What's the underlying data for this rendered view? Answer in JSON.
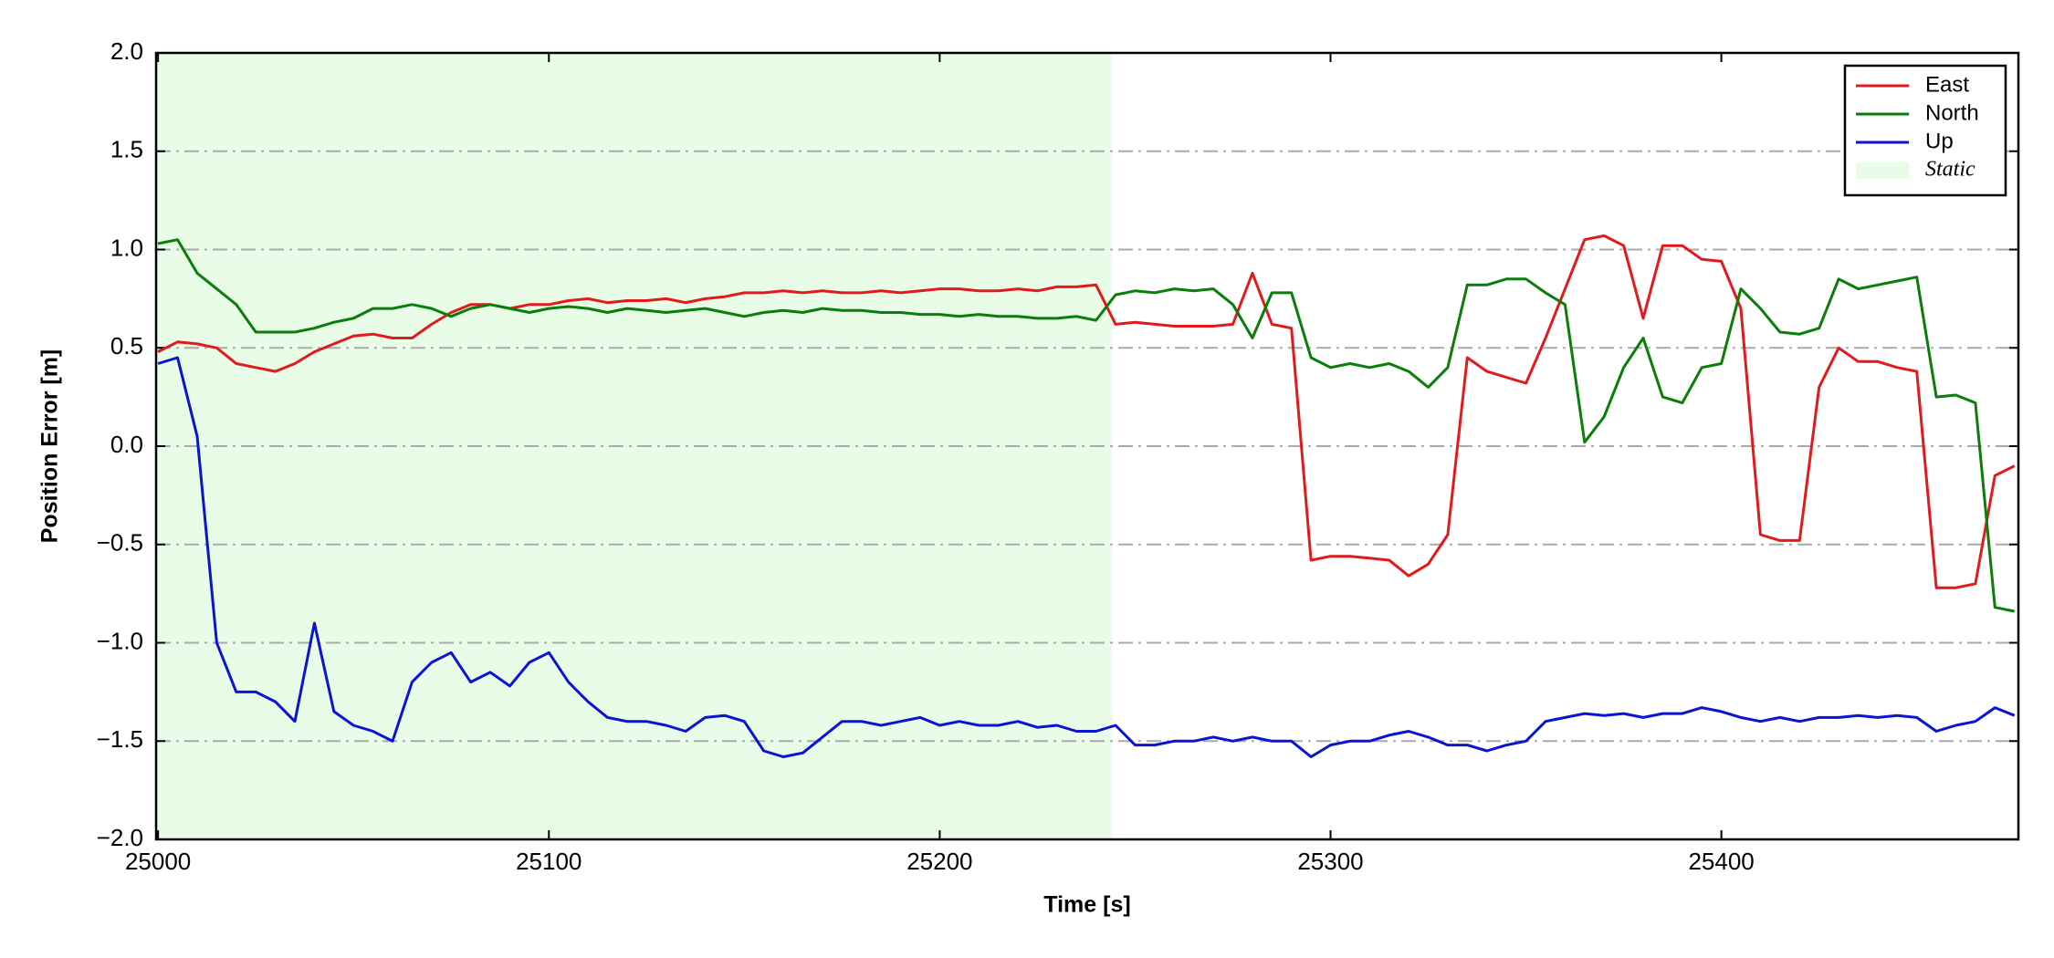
{
  "chart_data": {
    "type": "line",
    "xlabel": "Time [s]",
    "ylabel": "Position Error [m]",
    "xlim": [
      24999.5,
      25476
    ],
    "ylim": [
      -2,
      2
    ],
    "xticks": [
      25000,
      25100,
      25200,
      25300,
      25400
    ],
    "yticks": [
      {
        "value": -2,
        "label": "−2.0"
      },
      {
        "value": -1.5,
        "label": "−1.5"
      },
      {
        "value": -1,
        "label": "−1.0"
      },
      {
        "value": -0.5,
        "label": "−0.5"
      },
      {
        "value": 0,
        "label": "0.0"
      },
      {
        "value": 0.5,
        "label": "0.5"
      },
      {
        "value": 1,
        "label": "1.0"
      },
      {
        "value": 1.5,
        "label": "1.5"
      },
      {
        "value": 2,
        "label": "2.0"
      }
    ],
    "grid": true,
    "legend": "upper right",
    "shaded_region": {
      "name": "Static",
      "color": "#e8fce8",
      "xlim": [
        24999.5,
        25244
      ]
    },
    "x": [
      25000,
      25005,
      25010,
      25015,
      25020,
      25025,
      25030,
      25035,
      25040,
      25045,
      25050,
      25055,
      25060,
      25065,
      25070,
      25075,
      25080,
      25085,
      25090,
      25095,
      25100,
      25105,
      25110,
      25115,
      25120,
      25125,
      25130,
      25135,
      25140,
      25145,
      25150,
      25155,
      25160,
      25165,
      25170,
      25175,
      25180,
      25185,
      25190,
      25195,
      25200,
      25205,
      25210,
      25215,
      25220,
      25225,
      25230,
      25235,
      25240,
      25245,
      25250,
      25255,
      25260,
      25265,
      25270,
      25275,
      25280,
      25285,
      25290,
      25295,
      25300,
      25305,
      25310,
      25315,
      25320,
      25325,
      25330,
      25335,
      25340,
      25345,
      25350,
      25355,
      25360,
      25365,
      25370,
      25375,
      25380,
      25385,
      25390,
      25395,
      25400,
      25405,
      25410,
      25415,
      25420,
      25425,
      25430,
      25435,
      25440,
      25445,
      25450,
      25455,
      25460,
      25465,
      25470,
      25475
    ],
    "series": [
      {
        "name": "East",
        "color": "#e31a1c",
        "values": [
          0.48,
          0.53,
          0.52,
          0.5,
          0.42,
          0.4,
          0.38,
          0.42,
          0.48,
          0.52,
          0.56,
          0.57,
          0.55,
          0.55,
          0.62,
          0.68,
          0.72,
          0.72,
          0.7,
          0.72,
          0.72,
          0.74,
          0.75,
          0.73,
          0.74,
          0.74,
          0.75,
          0.73,
          0.75,
          0.76,
          0.78,
          0.78,
          0.79,
          0.78,
          0.79,
          0.78,
          0.78,
          0.79,
          0.78,
          0.79,
          0.8,
          0.8,
          0.79,
          0.79,
          0.8,
          0.79,
          0.81,
          0.81,
          0.82,
          0.62,
          0.63,
          0.62,
          0.61,
          0.61,
          0.61,
          0.62,
          0.88,
          0.62,
          0.6,
          -0.58,
          -0.56,
          -0.56,
          -0.57,
          -0.58,
          -0.66,
          -0.6,
          -0.45,
          0.45,
          0.38,
          0.35,
          0.32,
          0.55,
          0.8,
          1.05,
          1.07,
          1.02,
          0.65,
          1.02,
          1.02,
          0.95,
          0.94,
          0.7,
          -0.45,
          -0.48,
          -0.48,
          0.3,
          0.5,
          0.43,
          0.43,
          0.4,
          0.38,
          -0.72,
          -0.72,
          -0.7,
          -0.15,
          -0.1
        ]
      },
      {
        "name": "North",
        "color": "#0a7d0a",
        "values": [
          1.03,
          1.05,
          0.88,
          0.8,
          0.72,
          0.58,
          0.58,
          0.58,
          0.6,
          0.63,
          0.65,
          0.7,
          0.7,
          0.72,
          0.7,
          0.66,
          0.7,
          0.72,
          0.7,
          0.68,
          0.7,
          0.71,
          0.7,
          0.68,
          0.7,
          0.69,
          0.68,
          0.69,
          0.7,
          0.68,
          0.66,
          0.68,
          0.69,
          0.68,
          0.7,
          0.69,
          0.69,
          0.68,
          0.68,
          0.67,
          0.67,
          0.66,
          0.67,
          0.66,
          0.66,
          0.65,
          0.65,
          0.66,
          0.64,
          0.77,
          0.79,
          0.78,
          0.8,
          0.79,
          0.8,
          0.72,
          0.55,
          0.78,
          0.78,
          0.45,
          0.4,
          0.42,
          0.4,
          0.42,
          0.38,
          0.3,
          0.4,
          0.82,
          0.82,
          0.85,
          0.85,
          0.78,
          0.72,
          0.02,
          0.15,
          0.4,
          0.55,
          0.25,
          0.22,
          0.4,
          0.42,
          0.8,
          0.7,
          0.58,
          0.57,
          0.6,
          0.85,
          0.8,
          0.82,
          0.84,
          0.86,
          0.25,
          0.26,
          0.22,
          -0.82,
          -0.84
        ]
      },
      {
        "name": "Up",
        "color": "#0a14d2",
        "values": [
          0.42,
          0.45,
          0.05,
          -1.0,
          -1.25,
          -1.25,
          -1.3,
          -1.4,
          -0.9,
          -1.35,
          -1.42,
          -1.45,
          -1.5,
          -1.2,
          -1.1,
          -1.05,
          -1.2,
          -1.15,
          -1.22,
          -1.1,
          -1.05,
          -1.2,
          -1.3,
          -1.38,
          -1.4,
          -1.4,
          -1.42,
          -1.45,
          -1.38,
          -1.37,
          -1.4,
          -1.55,
          -1.58,
          -1.56,
          -1.48,
          -1.4,
          -1.4,
          -1.42,
          -1.4,
          -1.38,
          -1.42,
          -1.4,
          -1.42,
          -1.42,
          -1.4,
          -1.43,
          -1.42,
          -1.45,
          -1.45,
          -1.42,
          -1.52,
          -1.52,
          -1.5,
          -1.5,
          -1.48,
          -1.5,
          -1.48,
          -1.5,
          -1.5,
          -1.58,
          -1.52,
          -1.5,
          -1.5,
          -1.47,
          -1.45,
          -1.48,
          -1.52,
          -1.52,
          -1.55,
          -1.52,
          -1.5,
          -1.4,
          -1.38,
          -1.36,
          -1.37,
          -1.36,
          -1.38,
          -1.36,
          -1.36,
          -1.33,
          -1.35,
          -1.38,
          -1.4,
          -1.38,
          -1.4,
          -1.38,
          -1.38,
          -1.37,
          -1.38,
          -1.37,
          -1.38,
          -1.45,
          -1.42,
          -1.4,
          -1.33,
          -1.37
        ]
      }
    ]
  }
}
